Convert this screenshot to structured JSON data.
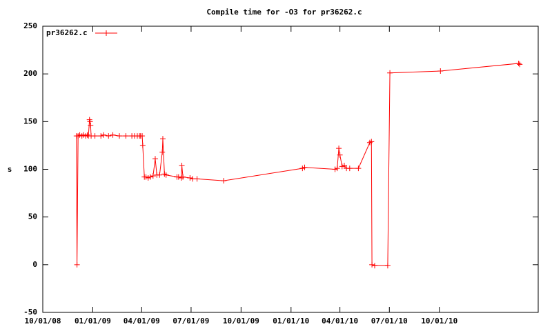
{
  "chart_data": {
    "type": "line",
    "title": "Compile time for -O3 for pr36262.c",
    "y_label": "s",
    "x": [
      "2008-12-02",
      "2008-12-03",
      "2008-12-05",
      "2008-12-08",
      "2008-12-12",
      "2008-12-15",
      "2008-12-19",
      "2008-12-22",
      "2008-12-24",
      "2008-12-26",
      "2008-12-27",
      "2008-12-28",
      "2008-12-29",
      "2009-01-05",
      "2009-01-16",
      "2009-01-21",
      "2009-01-30",
      "2009-02-07",
      "2009-02-19",
      "2009-03-03",
      "2009-03-14",
      "2009-03-19",
      "2009-03-24",
      "2009-03-28",
      "2009-03-30",
      "2009-04-02",
      "2009-04-03",
      "2009-04-06",
      "2009-04-09",
      "2009-04-13",
      "2009-04-17",
      "2009-04-22",
      "2009-04-26",
      "2009-04-29",
      "2009-05-04",
      "2009-05-09",
      "2009-05-10",
      "2009-05-13",
      "2009-05-16",
      "2009-06-05",
      "2009-06-08",
      "2009-06-13",
      "2009-06-14",
      "2009-06-16",
      "2009-06-29",
      "2009-07-04",
      "2009-07-12",
      "2009-08-30",
      "2010-01-22",
      "2010-01-26",
      "2010-03-23",
      "2010-03-27",
      "2010-03-30",
      "2010-04-01",
      "2010-04-05",
      "2010-04-09",
      "2010-04-13",
      "2010-04-19",
      "2010-05-05",
      "2010-05-26",
      "2010-05-29",
      "2010-05-30",
      "2010-06-04",
      "2010-06-28",
      "2010-07-02",
      "2010-10-03",
      "2011-02-24",
      "2011-02-26"
    ],
    "series": [
      {
        "name": "pr36262.c",
        "color": "#ff0000",
        "values": [
          135,
          0,
          135,
          136,
          135,
          136,
          135,
          136,
          135,
          152,
          150,
          146,
          135,
          135,
          135,
          136,
          135,
          136,
          135,
          135,
          135,
          135,
          135,
          135,
          135,
          135,
          125,
          92,
          92,
          91,
          92,
          93,
          111,
          94,
          94,
          118,
          132,
          95,
          94,
          92,
          92,
          91,
          104,
          92,
          91,
          90,
          90,
          88,
          101,
          102,
          100,
          101,
          122,
          115,
          103,
          104,
          101,
          101,
          101,
          128,
          129,
          0,
          -1,
          -1,
          201,
          203,
          211,
          210
        ]
      }
    ],
    "xlim": [
      "2008-10-01",
      "2011-04-01"
    ],
    "xticks": [
      {
        "value": "2008-10-01",
        "label": "10/01/08"
      },
      {
        "value": "2009-01-01",
        "label": "01/01/09"
      },
      {
        "value": "2009-04-01",
        "label": "04/01/09"
      },
      {
        "value": "2009-07-01",
        "label": "07/01/09"
      },
      {
        "value": "2009-10-01",
        "label": "10/01/09"
      },
      {
        "value": "2010-01-01",
        "label": "01/01/10"
      },
      {
        "value": "2010-04-01",
        "label": "04/01/10"
      },
      {
        "value": "2010-07-01",
        "label": "07/01/10"
      },
      {
        "value": "2010-10-01",
        "label": "10/01/10"
      }
    ],
    "ylim": [
      -50,
      250
    ],
    "yticks": [
      -50,
      0,
      50,
      100,
      150,
      200,
      250
    ],
    "legend": "top-left"
  }
}
